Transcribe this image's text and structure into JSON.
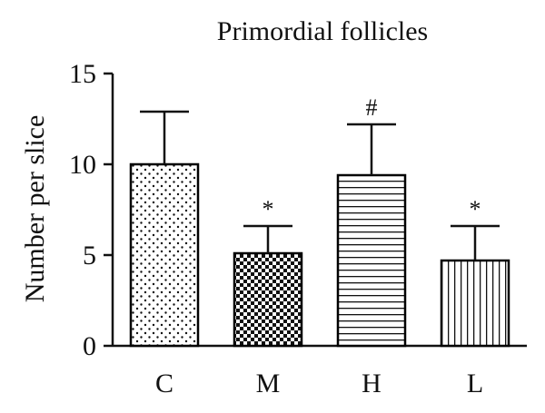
{
  "chart_data": {
    "type": "bar",
    "title": "Primordial follicles",
    "ylabel": "Number per slice",
    "xlabel": "",
    "ylim": [
      0,
      15
    ],
    "yticks": [
      0,
      5,
      10,
      15
    ],
    "categories": [
      "C",
      "M",
      "H",
      "L"
    ],
    "values": [
      10.0,
      5.1,
      9.4,
      4.7
    ],
    "error_upper": [
      2.9,
      1.5,
      2.8,
      1.9
    ],
    "annotations": [
      "",
      "*",
      "#",
      "*"
    ],
    "fill_patterns": [
      "dots",
      "checkerboard",
      "horizontal-lines",
      "vertical-lines"
    ],
    "bar_color": "#000000",
    "background": "#ffffff",
    "grid": false,
    "legend": "none"
  }
}
